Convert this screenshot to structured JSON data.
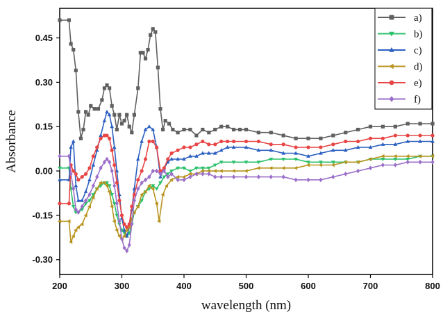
{
  "chart_data": {
    "type": "line",
    "title": "",
    "xlabel": "wavelength (nm)",
    "ylabel": "Absorbance",
    "xlim": [
      200,
      800
    ],
    "ylim": [
      -0.35,
      0.55
    ],
    "xticks": [
      200,
      300,
      400,
      500,
      600,
      700,
      800
    ],
    "yticks": [
      -0.3,
      -0.15,
      0.0,
      0.15,
      0.3,
      0.45
    ],
    "xtick_labels": [
      "200",
      "300",
      "400",
      "500",
      "600",
      "700",
      "800"
    ],
    "ytick_labels": [
      "-0.30",
      "-0.15",
      "0.00",
      "0.15",
      "0.30",
      "0.45"
    ],
    "grid": false,
    "legend_position": "top-right",
    "series": [
      {
        "name": "a)",
        "color": "#606060",
        "marker": "square",
        "x": [
          200,
          215,
          218,
          222,
          226,
          230,
          234,
          238,
          242,
          246,
          250,
          256,
          262,
          268,
          272,
          276,
          280,
          284,
          288,
          292,
          296,
          300,
          304,
          308,
          312,
          316,
          320,
          326,
          330,
          334,
          338,
          342,
          346,
          350,
          354,
          358,
          362,
          366,
          370,
          376,
          382,
          390,
          400,
          410,
          420,
          430,
          440,
          450,
          460,
          470,
          480,
          490,
          500,
          520,
          540,
          560,
          580,
          600,
          620,
          640,
          660,
          680,
          700,
          720,
          740,
          760,
          780,
          800
        ],
        "y": [
          0.51,
          0.51,
          0.43,
          0.41,
          0.34,
          0.2,
          0.11,
          0.14,
          0.2,
          0.19,
          0.22,
          0.21,
          0.21,
          0.24,
          0.28,
          0.29,
          0.28,
          0.22,
          0.19,
          0.14,
          0.19,
          0.16,
          0.17,
          0.19,
          0.15,
          0.13,
          0.19,
          0.28,
          0.4,
          0.4,
          0.38,
          0.41,
          0.46,
          0.48,
          0.47,
          0.35,
          0.21,
          0.14,
          0.17,
          0.16,
          0.14,
          0.13,
          0.14,
          0.14,
          0.12,
          0.14,
          0.13,
          0.14,
          0.15,
          0.15,
          0.14,
          0.14,
          0.14,
          0.13,
          0.13,
          0.12,
          0.11,
          0.11,
          0.11,
          0.12,
          0.13,
          0.14,
          0.15,
          0.15,
          0.15,
          0.16,
          0.16,
          0.16
        ]
      },
      {
        "name": "b)",
        "color": "#2bc06b",
        "marker": "triangle-down",
        "x": [
          200,
          215,
          218,
          222,
          226,
          230,
          236,
          242,
          248,
          254,
          260,
          266,
          272,
          276,
          280,
          284,
          288,
          292,
          296,
          300,
          304,
          308,
          312,
          316,
          320,
          326,
          332,
          338,
          344,
          350,
          356,
          362,
          368,
          374,
          380,
          390,
          400,
          410,
          420,
          430,
          440,
          450,
          460,
          480,
          500,
          520,
          540,
          560,
          580,
          600,
          620,
          640,
          660,
          680,
          700,
          720,
          740,
          760,
          780,
          800
        ],
        "y": [
          0.01,
          0.01,
          -0.06,
          -0.12,
          -0.14,
          -0.14,
          -0.13,
          -0.11,
          -0.1,
          -0.08,
          -0.06,
          -0.05,
          -0.04,
          -0.04,
          -0.05,
          -0.08,
          -0.11,
          -0.15,
          -0.18,
          -0.2,
          -0.21,
          -0.22,
          -0.21,
          -0.18,
          -0.14,
          -0.12,
          -0.1,
          -0.07,
          -0.06,
          -0.05,
          -0.06,
          -0.04,
          -0.02,
          -0.01,
          0.0,
          0.01,
          0.01,
          0.0,
          0.01,
          0.01,
          0.01,
          0.02,
          0.03,
          0.03,
          0.03,
          0.03,
          0.04,
          0.04,
          0.04,
          0.03,
          0.03,
          0.03,
          0.03,
          0.03,
          0.04,
          0.04,
          0.04,
          0.04,
          0.05,
          0.05
        ]
      },
      {
        "name": "c)",
        "color": "#2b5fc0",
        "marker": "triangle-up",
        "x": [
          200,
          215,
          218,
          222,
          226,
          230,
          236,
          242,
          248,
          254,
          260,
          266,
          272,
          276,
          280,
          284,
          288,
          292,
          296,
          300,
          304,
          308,
          312,
          316,
          320,
          326,
          332,
          338,
          344,
          350,
          356,
          362,
          368,
          374,
          380,
          390,
          400,
          410,
          420,
          430,
          440,
          450,
          460,
          470,
          480,
          500,
          520,
          540,
          560,
          580,
          600,
          620,
          640,
          660,
          680,
          700,
          720,
          740,
          760,
          780,
          800
        ],
        "y": [
          -0.03,
          -0.03,
          0.08,
          0.1,
          -0.05,
          -0.1,
          -0.1,
          -0.07,
          -0.03,
          0.02,
          0.07,
          0.12,
          0.17,
          0.2,
          0.19,
          0.15,
          0.08,
          0.0,
          -0.08,
          -0.16,
          -0.2,
          -0.22,
          -0.19,
          -0.13,
          -0.06,
          0.04,
          0.1,
          0.14,
          0.15,
          0.14,
          0.08,
          -0.02,
          0.01,
          0.03,
          0.04,
          0.04,
          0.04,
          0.05,
          0.05,
          0.06,
          0.06,
          0.06,
          0.07,
          0.08,
          0.08,
          0.08,
          0.07,
          0.07,
          0.06,
          0.06,
          0.05,
          0.06,
          0.07,
          0.07,
          0.08,
          0.08,
          0.09,
          0.09,
          0.1,
          0.1,
          0.1
        ]
      },
      {
        "name": "d)",
        "color": "#b8941f",
        "marker": "triangle-left",
        "x": [
          200,
          215,
          218,
          222,
          226,
          230,
          236,
          242,
          248,
          254,
          260,
          266,
          272,
          276,
          280,
          284,
          288,
          292,
          296,
          300,
          304,
          308,
          312,
          316,
          320,
          326,
          332,
          338,
          344,
          350,
          356,
          360,
          366,
          372,
          380,
          390,
          400,
          410,
          420,
          430,
          440,
          450,
          460,
          480,
          500,
          520,
          540,
          560,
          580,
          600,
          620,
          640,
          660,
          680,
          700,
          720,
          740,
          760,
          780,
          800
        ],
        "y": [
          -0.17,
          -0.17,
          -0.24,
          -0.22,
          -0.2,
          -0.19,
          -0.18,
          -0.15,
          -0.12,
          -0.09,
          -0.06,
          -0.04,
          -0.04,
          -0.05,
          -0.07,
          -0.12,
          -0.17,
          -0.2,
          -0.22,
          -0.23,
          -0.22,
          -0.2,
          -0.19,
          -0.16,
          -0.14,
          -0.12,
          -0.08,
          -0.07,
          -0.05,
          -0.06,
          -0.11,
          -0.17,
          -0.08,
          -0.05,
          -0.03,
          -0.02,
          -0.02,
          -0.01,
          -0.01,
          0.0,
          0.0,
          0.0,
          0.0,
          0.0,
          0.0,
          0.01,
          0.01,
          0.01,
          0.01,
          0.02,
          0.02,
          0.02,
          0.03,
          0.03,
          0.04,
          0.05,
          0.05,
          0.05,
          0.05,
          0.05
        ]
      },
      {
        "name": "e)",
        "color": "#e84545",
        "marker": "circle",
        "x": [
          200,
          215,
          218,
          222,
          226,
          230,
          236,
          242,
          248,
          254,
          260,
          266,
          272,
          276,
          280,
          284,
          288,
          292,
          296,
          300,
          304,
          308,
          312,
          316,
          320,
          326,
          332,
          338,
          344,
          350,
          356,
          362,
          368,
          374,
          380,
          390,
          400,
          410,
          420,
          430,
          440,
          450,
          460,
          470,
          480,
          500,
          520,
          540,
          560,
          580,
          600,
          620,
          640,
          660,
          680,
          700,
          720,
          740,
          760,
          780,
          800
        ],
        "y": [
          -0.11,
          -0.11,
          0.02,
          0.0,
          -0.01,
          -0.03,
          -0.02,
          -0.01,
          0.01,
          0.05,
          0.08,
          0.11,
          0.12,
          0.12,
          0.11,
          0.07,
          0.02,
          -0.04,
          -0.1,
          -0.15,
          -0.18,
          -0.19,
          -0.18,
          -0.12,
          -0.08,
          -0.03,
          0.0,
          0.04,
          0.1,
          0.1,
          0.08,
          0.0,
          0.01,
          0.04,
          0.06,
          0.07,
          0.08,
          0.08,
          0.09,
          0.1,
          0.09,
          0.09,
          0.1,
          0.1,
          0.1,
          0.1,
          0.1,
          0.09,
          0.09,
          0.08,
          0.08,
          0.08,
          0.09,
          0.1,
          0.1,
          0.11,
          0.11,
          0.12,
          0.12,
          0.12,
          0.12
        ]
      },
      {
        "name": "f)",
        "color": "#9b6fc9",
        "marker": "diamond",
        "x": [
          200,
          215,
          218,
          222,
          226,
          230,
          236,
          242,
          248,
          254,
          260,
          266,
          272,
          276,
          280,
          284,
          288,
          292,
          296,
          300,
          304,
          308,
          312,
          316,
          320,
          326,
          332,
          338,
          344,
          350,
          356,
          362,
          368,
          374,
          380,
          390,
          400,
          410,
          420,
          430,
          440,
          450,
          460,
          480,
          500,
          520,
          540,
          560,
          580,
          600,
          620,
          640,
          660,
          680,
          700,
          720,
          740,
          760,
          780,
          800
        ],
        "y": [
          0.05,
          0.05,
          -0.01,
          -0.06,
          -0.13,
          -0.14,
          -0.12,
          -0.1,
          -0.08,
          -0.05,
          -0.02,
          0.01,
          0.03,
          0.04,
          0.03,
          0.0,
          -0.05,
          -0.11,
          -0.17,
          -0.23,
          -0.26,
          -0.27,
          -0.25,
          -0.18,
          -0.1,
          -0.06,
          -0.04,
          -0.03,
          -0.02,
          0.0,
          0.0,
          -0.01,
          0.0,
          -0.02,
          -0.01,
          -0.03,
          -0.03,
          -0.02,
          -0.01,
          -0.01,
          -0.01,
          -0.02,
          -0.02,
          -0.02,
          -0.02,
          -0.02,
          -0.02,
          -0.02,
          -0.03,
          -0.03,
          -0.03,
          -0.02,
          -0.01,
          0.0,
          0.01,
          0.02,
          0.02,
          0.03,
          0.03,
          0.03
        ]
      }
    ]
  }
}
